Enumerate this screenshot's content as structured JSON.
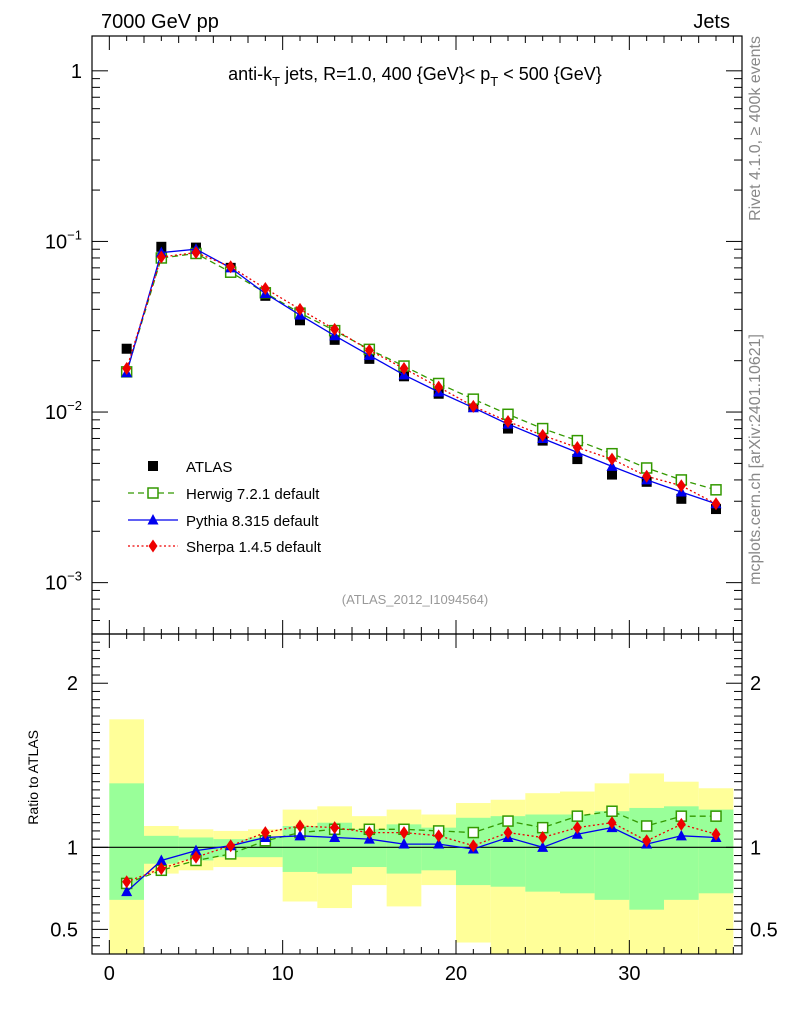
{
  "header": {
    "left_label": "7000 GeV pp",
    "right_label": "Jets",
    "side_label_rivet": "Rivet 4.1.0, ≥ 400k events",
    "side_label_url": "mcplots.cern.ch [arXiv:2401.10621]"
  },
  "chart_data": [
    {
      "type": "line",
      "panel": "main",
      "title_parts": {
        "prefix": "anti-k",
        "sub_k": "T",
        "middle": " jets, R=1.0, 400 {GeV}< p",
        "sub_p": "T",
        "suffix": " < 500 {GeV}"
      },
      "watermark": "(ATLAS_2012_I1094564)",
      "yscale": "log",
      "ylim": [
        0.0005,
        1.6
      ],
      "xlim": [
        -1,
        36.5
      ],
      "y_tick_labels": [
        {
          "value": 1,
          "base": "1",
          "exp": ""
        },
        {
          "value": 0.1,
          "base": "10",
          "exp": "−1"
        },
        {
          "value": 0.01,
          "base": "10",
          "exp": "−2"
        },
        {
          "value": 0.001,
          "base": "10",
          "exp": "−3"
        }
      ],
      "x": [
        1,
        3,
        5,
        7,
        9,
        11,
        13,
        15,
        17,
        19,
        21,
        23,
        25,
        27,
        29,
        31,
        33,
        35
      ],
      "series": [
        {
          "name": "ATLAS",
          "color": "#000000",
          "marker": "square-filled",
          "line": "none",
          "values": [
            0.0235,
            0.093,
            0.092,
            0.07,
            0.048,
            0.0345,
            0.0265,
            0.0205,
            0.0162,
            0.0128,
            0.0107,
            0.008,
            0.0068,
            0.0053,
            0.0043,
            0.0039,
            0.0031,
            0.0027
          ]
        },
        {
          "name": "Herwig 7.2.1 default",
          "color": "#339900",
          "marker": "square-open",
          "line": "dashed",
          "values": [
            0.0172,
            0.08,
            0.085,
            0.066,
            0.05,
            0.038,
            0.03,
            0.0233,
            0.0186,
            0.0147,
            0.0119,
            0.0097,
            0.008,
            0.0068,
            0.0057,
            0.0047,
            0.004,
            0.0035
          ]
        },
        {
          "name": "Pythia 8.315 default",
          "color": "#0000ee",
          "marker": "triangle",
          "line": "solid",
          "values": [
            0.017,
            0.086,
            0.09,
            0.07,
            0.0495,
            0.037,
            0.028,
            0.0215,
            0.0165,
            0.0131,
            0.0106,
            0.0085,
            0.007,
            0.0058,
            0.0048,
            0.004,
            0.0034,
            0.0029
          ]
        },
        {
          "name": "Sherpa 1.4.5 default",
          "color": "#ee0000",
          "marker": "diamond",
          "line": "dotted",
          "values": [
            0.018,
            0.081,
            0.086,
            0.071,
            0.053,
            0.04,
            0.0305,
            0.023,
            0.018,
            0.014,
            0.0108,
            0.0088,
            0.0073,
            0.0062,
            0.0053,
            0.0042,
            0.0037,
            0.0029
          ]
        }
      ],
      "legend": [
        {
          "label": "ATLAS"
        },
        {
          "label": "Herwig 7.2.1 default"
        },
        {
          "label": "Pythia 8.315 default"
        },
        {
          "label": "Sherpa 1.4.5 default"
        }
      ]
    },
    {
      "type": "line",
      "panel": "ratio",
      "ylabel": "Ratio to ATLAS",
      "ylim": [
        0.35,
        2.3
      ],
      "xlim": [
        -1,
        36.5
      ],
      "y_tick_labels": [
        "2",
        "1",
        "0.5"
      ],
      "y_tick_values": [
        2,
        1,
        0.5
      ],
      "x_tick_labels": [
        "0",
        "10",
        "20",
        "30"
      ],
      "x_tick_values": [
        0,
        10,
        20,
        30
      ],
      "bin_edges": [
        0,
        2,
        4,
        6,
        8,
        10,
        12,
        14,
        16,
        18,
        20,
        22,
        24,
        26,
        28,
        30,
        32,
        34,
        36
      ],
      "band_yellow": {
        "color": "#ffff99",
        "low": [
          0.35,
          0.84,
          0.86,
          0.88,
          0.88,
          0.67,
          0.63,
          0.77,
          0.64,
          0.77,
          0.42,
          0.35,
          0.35,
          0.35,
          0.35,
          0.35,
          0.35,
          0.35
        ],
        "high": [
          1.78,
          1.13,
          1.11,
          1.1,
          1.11,
          1.23,
          1.25,
          1.19,
          1.23,
          1.2,
          1.27,
          1.29,
          1.33,
          1.34,
          1.39,
          1.45,
          1.4,
          1.36
        ]
      },
      "band_green": {
        "color": "#99ff99",
        "low": [
          0.68,
          0.9,
          0.92,
          0.94,
          0.94,
          0.85,
          0.84,
          0.88,
          0.84,
          0.86,
          0.77,
          0.76,
          0.73,
          0.72,
          0.68,
          0.62,
          0.68,
          0.72
        ],
        "high": [
          1.39,
          1.07,
          1.06,
          1.05,
          1.06,
          1.13,
          1.15,
          1.11,
          1.14,
          1.12,
          1.18,
          1.19,
          1.2,
          1.2,
          1.22,
          1.24,
          1.25,
          1.23
        ]
      },
      "x": [
        1,
        3,
        5,
        7,
        9,
        11,
        13,
        15,
        17,
        19,
        21,
        23,
        25,
        27,
        29,
        31,
        33,
        35
      ],
      "series": [
        {
          "name": "Herwig 7.2.1 default",
          "color": "#339900",
          "marker": "square-open",
          "line": "dashed",
          "values": [
            0.78,
            0.86,
            0.92,
            0.96,
            1.04,
            1.09,
            1.11,
            1.11,
            1.11,
            1.1,
            1.09,
            1.16,
            1.12,
            1.19,
            1.22,
            1.13,
            1.19,
            1.19
          ]
        },
        {
          "name": "Pythia 8.315 default",
          "color": "#0000ee",
          "marker": "triangle",
          "line": "solid",
          "values": [
            0.73,
            0.92,
            0.98,
            1.01,
            1.06,
            1.07,
            1.06,
            1.05,
            1.02,
            1.02,
            0.99,
            1.06,
            1.0,
            1.08,
            1.12,
            1.02,
            1.07,
            1.06
          ]
        },
        {
          "name": "Sherpa 1.4.5 default",
          "color": "#ee0000",
          "marker": "diamond",
          "line": "dotted",
          "values": [
            0.79,
            0.87,
            0.94,
            1.01,
            1.09,
            1.13,
            1.12,
            1.09,
            1.09,
            1.07,
            1.01,
            1.09,
            1.06,
            1.12,
            1.15,
            1.04,
            1.14,
            1.08
          ]
        }
      ]
    }
  ]
}
